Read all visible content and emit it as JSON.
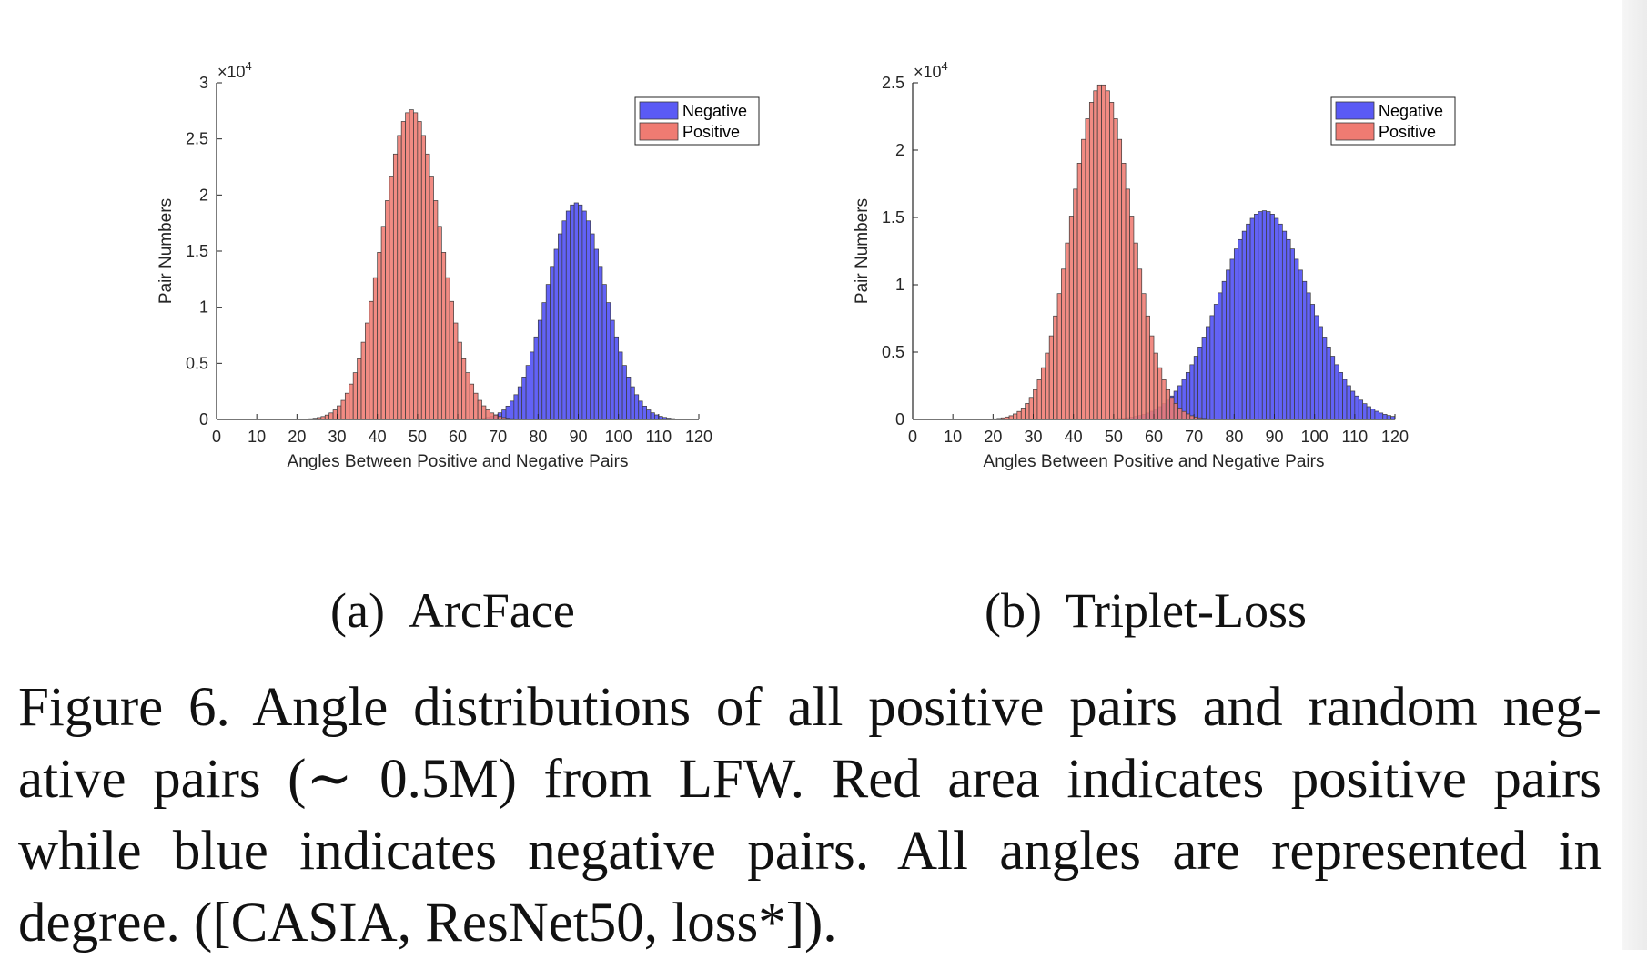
{
  "figure": {
    "subcaptions": [
      {
        "label": "(a)",
        "name": "ArcFace"
      },
      {
        "label": "(b)",
        "name": "Triplet-Loss"
      }
    ],
    "caption_lines": [
      "Figure 6. Angle distributions of all positive pairs and random neg-",
      "ative pairs (∼ 0.5M) from LFW. Red area indicates positive pairs",
      "while blue indicates negative pairs.  All angles are represented in",
      "degree. ([CASIA, ResNet50, loss*])."
    ]
  },
  "colors": {
    "negative_fill": "#5a5af5",
    "positive_fill": "#ef7b72",
    "edge": "#3a3a3a",
    "axis": "#262626"
  },
  "chart_data": [
    {
      "type": "histogram",
      "title": "ArcFace",
      "xlabel": "Angles Between Positive and Negative Pairs",
      "ylabel": "Pair Numbers",
      "exponent_label": "×10",
      "exponent_power": "4",
      "xlim": [
        0,
        120
      ],
      "ylim": [
        0,
        3
      ],
      "xticks": [
        0,
        10,
        20,
        30,
        40,
        50,
        60,
        70,
        80,
        90,
        100,
        110,
        120
      ],
      "yticks": [
        0,
        0.5,
        1,
        1.5,
        2,
        2.5,
        3
      ],
      "bin_width": 1,
      "legend_position": "top-right",
      "series": [
        {
          "name": "Negative",
          "distribution": "gaussian",
          "mean": 89.5,
          "std": 7.2,
          "peak": 1.93,
          "range": [
            55,
            125
          ]
        },
        {
          "name": "Positive",
          "distribution": "gaussian",
          "mean": 48.5,
          "std": 7.2,
          "peak": 2.76,
          "range": [
            10,
            85
          ]
        }
      ]
    },
    {
      "type": "histogram",
      "title": "Triplet-Loss",
      "xlabel": "Angles Between Positive and Negative Pairs",
      "ylabel": "Pair Numbers",
      "exponent_label": "×10",
      "exponent_power": "4",
      "xlim": [
        0,
        120
      ],
      "ylim": [
        0,
        2.5
      ],
      "xticks": [
        0,
        10,
        20,
        30,
        40,
        50,
        60,
        70,
        80,
        90,
        100,
        110,
        120
      ],
      "yticks": [
        0,
        0.5,
        1,
        1.5,
        2,
        2.5
      ],
      "bin_width": 1,
      "legend_position": "top-right",
      "series": [
        {
          "name": "Negative",
          "distribution": "gaussian",
          "mean": 87.5,
          "std": 11.0,
          "peak": 1.55,
          "range": [
            40,
            125
          ]
        },
        {
          "name": "Positive",
          "distribution": "gaussian",
          "mean": 47.0,
          "std": 7.5,
          "peak": 2.49,
          "range": [
            10,
            85
          ]
        }
      ]
    }
  ]
}
